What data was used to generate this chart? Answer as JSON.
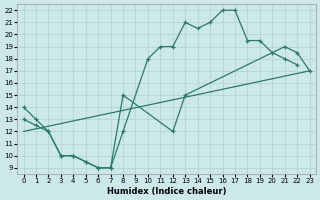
{
  "xlabel": "Humidex (Indice chaleur)",
  "bg_color": "#cce8e8",
  "grid_color": "#b0d0d0",
  "line_color": "#2a7a6a",
  "xlim": [
    -0.5,
    23.5
  ],
  "ylim": [
    8.5,
    22.5
  ],
  "xticks": [
    0,
    1,
    2,
    3,
    4,
    5,
    6,
    7,
    8,
    9,
    10,
    11,
    12,
    13,
    14,
    15,
    16,
    17,
    18,
    19,
    20,
    21,
    22,
    23
  ],
  "yticks": [
    9,
    10,
    11,
    12,
    13,
    14,
    15,
    16,
    17,
    18,
    19,
    20,
    21,
    22
  ],
  "curve1_x": [
    0,
    1,
    2,
    3,
    4,
    5,
    6,
    7,
    8,
    10,
    11,
    12,
    13,
    14,
    15,
    16,
    17,
    18,
    19,
    20,
    21,
    22
  ],
  "curve1_y": [
    14,
    13,
    12,
    10,
    10,
    9.5,
    9,
    9,
    12,
    18,
    19,
    19,
    21,
    20.5,
    21,
    22,
    22,
    19.5,
    19.5,
    18.5,
    18,
    17.5
  ],
  "curve2_x": [
    0,
    1,
    2,
    3,
    4,
    5,
    6,
    7,
    8,
    12,
    13,
    21,
    22,
    23
  ],
  "curve2_y": [
    13,
    12.5,
    12,
    10,
    10,
    9.5,
    9,
    9,
    15,
    12,
    15,
    19,
    18.5,
    17
  ],
  "curve3_x": [
    0,
    23
  ],
  "curve3_y": [
    12,
    17
  ]
}
